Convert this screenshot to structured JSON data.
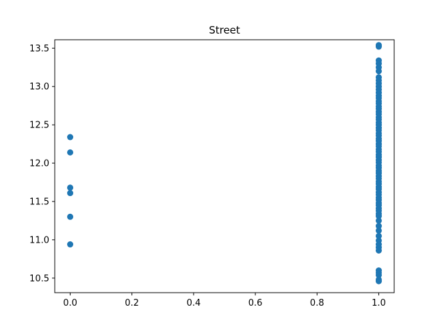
{
  "chart_data": {
    "type": "scatter",
    "title": "Street",
    "xlabel": "",
    "ylabel": "",
    "xlim": [
      -0.05,
      1.05
    ],
    "ylim": [
      10.31,
      13.61
    ],
    "xticks": [
      0.0,
      0.2,
      0.4,
      0.6,
      0.8,
      1.0
    ],
    "xtick_labels": [
      "0.0",
      "0.2",
      "0.4",
      "0.6",
      "0.8",
      "1.0"
    ],
    "yticks": [
      10.5,
      11.0,
      11.5,
      12.0,
      12.5,
      13.0,
      13.5
    ],
    "ytick_labels": [
      "10.5",
      "11.0",
      "11.5",
      "12.0",
      "12.5",
      "13.0",
      "13.5"
    ],
    "grid": false,
    "marker_color": "#1f77b4",
    "series": [
      {
        "points": [
          [
            0,
            12.34
          ],
          [
            0,
            12.14
          ],
          [
            0,
            11.68
          ],
          [
            0,
            11.61
          ],
          [
            0,
            11.3
          ],
          [
            0,
            10.94
          ],
          [
            1,
            13.54
          ],
          [
            1,
            13.52
          ],
          [
            1,
            13.34
          ],
          [
            1,
            13.3
          ],
          [
            1,
            13.25
          ],
          [
            1,
            13.2
          ],
          [
            1,
            13.12
          ],
          [
            1,
            13.08
          ],
          [
            1,
            13.04
          ],
          [
            1,
            13.0
          ],
          [
            1,
            12.96
          ],
          [
            1,
            12.92
          ],
          [
            1,
            12.88
          ],
          [
            1,
            12.85
          ],
          [
            1,
            12.81
          ],
          [
            1,
            12.78
          ],
          [
            1,
            12.74
          ],
          [
            1,
            12.71
          ],
          [
            1,
            12.67
          ],
          [
            1,
            12.64
          ],
          [
            1,
            12.6
          ],
          [
            1,
            12.57
          ],
          [
            1,
            12.53
          ],
          [
            1,
            12.5
          ],
          [
            1,
            12.46
          ],
          [
            1,
            12.43
          ],
          [
            1,
            12.39
          ],
          [
            1,
            12.36
          ],
          [
            1,
            12.32
          ],
          [
            1,
            12.29
          ],
          [
            1,
            12.25
          ],
          [
            1,
            12.22
          ],
          [
            1,
            12.18
          ],
          [
            1,
            12.15
          ],
          [
            1,
            12.11
          ],
          [
            1,
            12.08
          ],
          [
            1,
            12.04
          ],
          [
            1,
            12.01
          ],
          [
            1,
            11.97
          ],
          [
            1,
            11.94
          ],
          [
            1,
            11.9
          ],
          [
            1,
            11.87
          ],
          [
            1,
            11.83
          ],
          [
            1,
            11.8
          ],
          [
            1,
            11.76
          ],
          [
            1,
            11.73
          ],
          [
            1,
            11.69
          ],
          [
            1,
            11.66
          ],
          [
            1,
            11.62
          ],
          [
            1,
            11.59
          ],
          [
            1,
            11.55
          ],
          [
            1,
            11.52
          ],
          [
            1,
            11.48
          ],
          [
            1,
            11.45
          ],
          [
            1,
            11.41
          ],
          [
            1,
            11.38
          ],
          [
            1,
            11.34
          ],
          [
            1,
            11.31
          ],
          [
            1,
            11.25
          ],
          [
            1,
            11.18
          ],
          [
            1,
            11.12
          ],
          [
            1,
            11.05
          ],
          [
            1,
            10.99
          ],
          [
            1,
            10.94
          ],
          [
            1,
            10.9
          ],
          [
            1,
            10.86
          ],
          [
            1,
            10.6
          ],
          [
            1,
            10.57
          ],
          [
            1,
            10.54
          ],
          [
            1,
            10.48
          ],
          [
            1,
            10.46
          ]
        ]
      }
    ]
  }
}
